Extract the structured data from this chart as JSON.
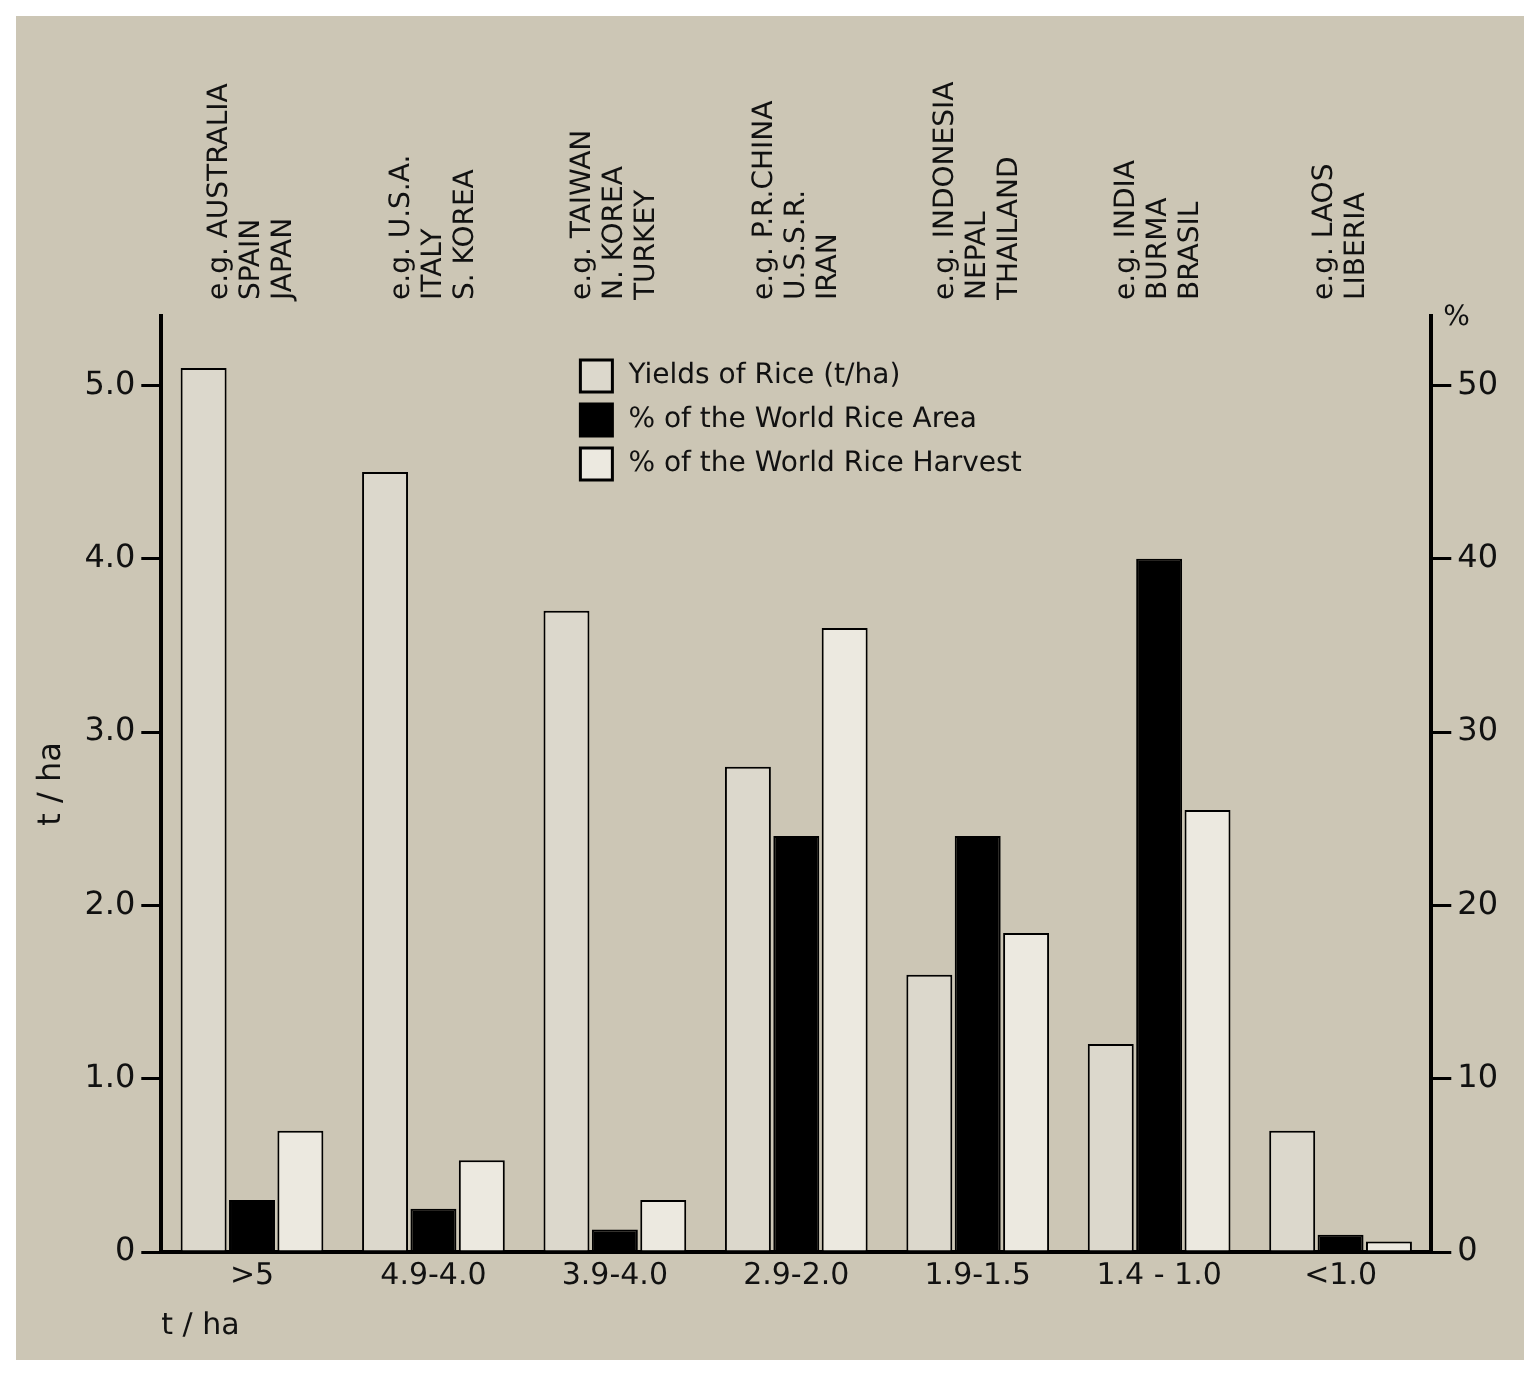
{
  "chart_data": {
    "type": "bar",
    "categories": [
      ">5",
      "4.9-4.0",
      "3.9-4.0",
      "2.9-2.0",
      "1.9-1.5",
      "1.4 - 1.0",
      "<1.0"
    ],
    "xlabel": "t / ha",
    "ylabel": "t / ha",
    "y2label": "%",
    "series": [
      {
        "name": "Yields of Rice (t/ha)",
        "color": "#dcd8cc",
        "values": [
          5.1,
          4.5,
          3.7,
          2.8,
          1.6,
          1.2,
          0.7
        ]
      },
      {
        "name": "% of the World Rice Area",
        "color": "#000000",
        "axis": "y2",
        "values": [
          3,
          2.5,
          1.3,
          24,
          24,
          40,
          1
        ]
      },
      {
        "name": "% of the World Rice Harvest",
        "color": "#ece9e0",
        "axis": "y2",
        "values": [
          7,
          5.3,
          3,
          36,
          18.4,
          25.5,
          0.6
        ]
      }
    ],
    "ylim": [
      0,
      5.4
    ],
    "yticks": [
      0,
      {
        "value": 1,
        "label": "1.0"
      },
      {
        "value": 2,
        "label": "2.0"
      },
      {
        "value": 3,
        "label": "3.0"
      },
      {
        "value": 4,
        "label": "4.0"
      },
      {
        "value": 5,
        "label": "5.0"
      }
    ],
    "y2lim": [
      0,
      54
    ],
    "y2ticks": [
      0,
      10,
      20,
      30,
      40,
      50
    ],
    "annotations": [
      "e.g. AUSTRALIA\nSPAIN\nJAPAN",
      "e.g. U.S.A.\nITALY\nS. KOREA",
      "e.g. TAIWAN\nN. KOREA\nTURKEY",
      "e.g. P.R.CHINA\nU.S.S.R.\nIRAN",
      "e.g. INDONESIA\nNEPAL\nTHAILAND",
      "e.g. INDIA\nBURMA\nBRASIL",
      "e.g. LAOS\nLIBERIA"
    ],
    "legend": "top",
    "grid": false
  }
}
